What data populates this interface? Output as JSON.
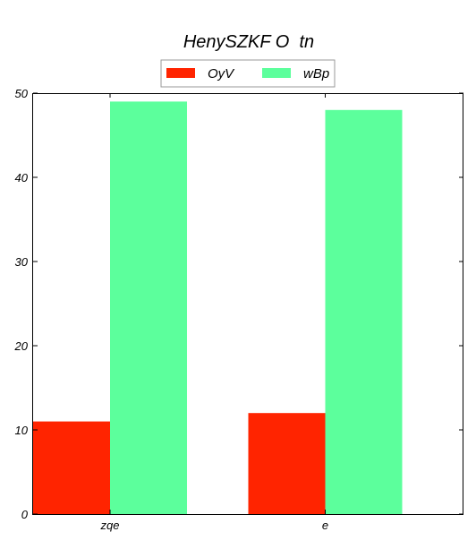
{
  "chart_data": {
    "type": "bar",
    "title": "HenySZKF O  tn",
    "categories": [
      "zqe",
      "e"
    ],
    "series": [
      {
        "name": "OyV",
        "values": [
          11,
          12
        ],
        "color": "#ff2400"
      },
      {
        "name": "wBp",
        "values": [
          49,
          48
        ],
        "color": "#5cff9c"
      }
    ],
    "xlabel": "",
    "ylabel": "",
    "ylim": [
      0,
      50
    ],
    "yticks": [
      "0",
      "10",
      "20",
      "30",
      "40",
      "50"
    ],
    "grid": false,
    "legend_position": "top-center"
  }
}
